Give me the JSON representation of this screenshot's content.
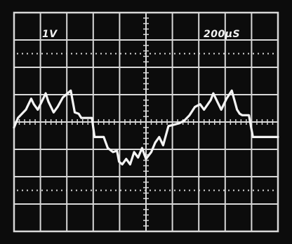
{
  "readouts": {
    "volts_per_div": "1V",
    "time_per_div": "200µS"
  },
  "colors": {
    "background": "#0c0c0c",
    "graticule": "#d8d8d8",
    "trace": "#f4f4f4"
  },
  "graticule": {
    "divisions_x": 10,
    "divisions_y": 8
  },
  "waveform": {
    "description_values_x_div": [
      0.0,
      0.15,
      0.45,
      0.65,
      0.75,
      0.9,
      1.05,
      1.2,
      1.3,
      1.5,
      1.65,
      1.85,
      2.15,
      2.3,
      2.45,
      2.55,
      2.95,
      3.05,
      3.4,
      3.55,
      3.75,
      3.9,
      3.98,
      4.1,
      4.25,
      4.4,
      4.55,
      4.7,
      4.85,
      5.0,
      5.2,
      5.35,
      5.5,
      5.65,
      5.85,
      6.05,
      6.25,
      6.45,
      6.65,
      6.85,
      7.05,
      7.2,
      7.45,
      7.55,
      7.7,
      7.85,
      8.05,
      8.25,
      8.45,
      8.55,
      8.65,
      8.9,
      9.05,
      9.2,
      10.0
    ],
    "description_values_y_div": [
      -0.2,
      0.15,
      0.45,
      0.85,
      0.65,
      0.45,
      0.75,
      1.05,
      0.75,
      0.35,
      0.55,
      0.9,
      1.15,
      0.35,
      0.3,
      0.15,
      0.15,
      -0.55,
      -0.55,
      -0.95,
      -1.1,
      -1.05,
      -1.45,
      -1.55,
      -1.35,
      -1.55,
      -1.1,
      -1.3,
      -0.95,
      -1.35,
      -1.1,
      -0.75,
      -0.55,
      -0.85,
      -0.15,
      -0.1,
      -0.05,
      0.05,
      0.25,
      0.55,
      0.65,
      0.45,
      0.8,
      1.05,
      0.75,
      0.45,
      0.85,
      1.15,
      0.45,
      0.3,
      0.25,
      0.25,
      -0.55,
      -0.55,
      -0.55
    ]
  }
}
